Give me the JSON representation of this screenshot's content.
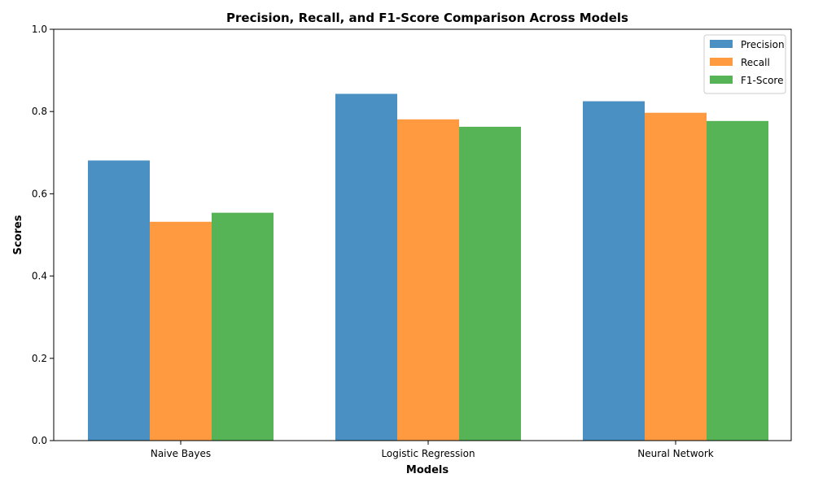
{
  "chart_data": {
    "type": "bar",
    "title": "Precision, Recall, and F1-Score Comparison Across Models",
    "xlabel": "Models",
    "ylabel": "Scores",
    "ylim": [
      0,
      1
    ],
    "yticks": [
      "0.0",
      "0.2",
      "0.4",
      "0.6",
      "0.8",
      "1.0"
    ],
    "categories": [
      "Naive Bayes",
      "Logistic Regression",
      "Neural Network"
    ],
    "series": [
      {
        "name": "Precision",
        "values": [
          0.681,
          0.843,
          0.825
        ],
        "color": "#4a90c2"
      },
      {
        "name": "Recall",
        "values": [
          0.532,
          0.781,
          0.797
        ],
        "color": "#ff9a40"
      },
      {
        "name": "F1-Score",
        "values": [
          0.554,
          0.763,
          0.777
        ],
        "color": "#56b356"
      }
    ],
    "grid": false,
    "legend_position": "top-right"
  }
}
